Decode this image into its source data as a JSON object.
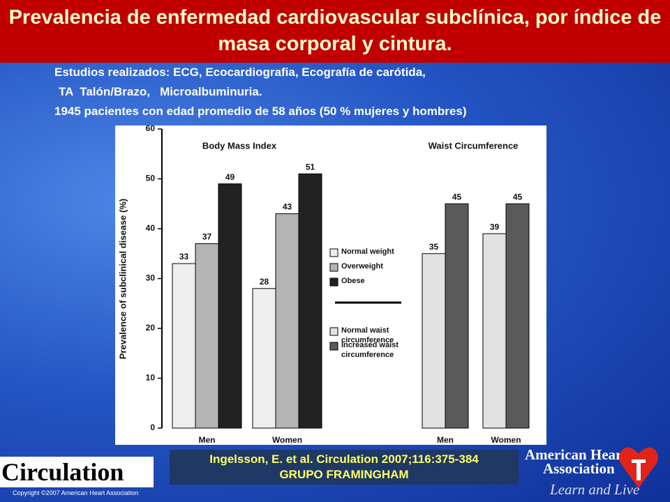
{
  "slide": {
    "title": "Prevalencia  de enfermedad cardiovascular subclínica, por índice de masa corporal y cintura.",
    "details": [
      "Estudios realizados: ECG, Ecocardiografia, Ecografía de carótida,",
      "TA  Talón/Brazo,   Microalbuminuria.",
      "1945 pacientes con edad promedio de 58 años (50 % mujeres y hombres)"
    ],
    "citation": [
      "Ingelsson, E. et al. Circulation 2007;116:375-384",
      "GRUPO FRAMINGHAM"
    ],
    "journal": "Circulation",
    "copyright": "Copyright ©2007 American Heart Association",
    "logo": [
      "American Heart",
      "Association",
      "Learn and Live"
    ]
  },
  "chart_data": {
    "type": "bar",
    "y_label": "Prevalence of subclinical disease (%)",
    "ylim": [
      0,
      60
    ],
    "yticks": [
      0,
      10,
      20,
      30,
      40,
      50,
      60
    ],
    "panels": [
      {
        "title": "Body Mass Index",
        "categories": [
          "Men",
          "Women"
        ],
        "series": [
          {
            "name": "Normal weight",
            "color": "#eeeeee",
            "values": [
              33,
              28
            ]
          },
          {
            "name": "Overweight",
            "color": "#b4b4b4",
            "values": [
              37,
              43
            ]
          },
          {
            "name": "Obese",
            "color": "#222222",
            "values": [
              49,
              51
            ]
          }
        ]
      },
      {
        "title": "Waist Circumference",
        "categories": [
          "Men",
          "Women"
        ],
        "series": [
          {
            "name": "Normal waist circumference",
            "color": "#e2e2e2",
            "values": [
              35,
              39
            ]
          },
          {
            "name": "Increased waist circumference",
            "color": "#5a5a5a",
            "values": [
              45,
              45
            ]
          }
        ]
      }
    ]
  }
}
